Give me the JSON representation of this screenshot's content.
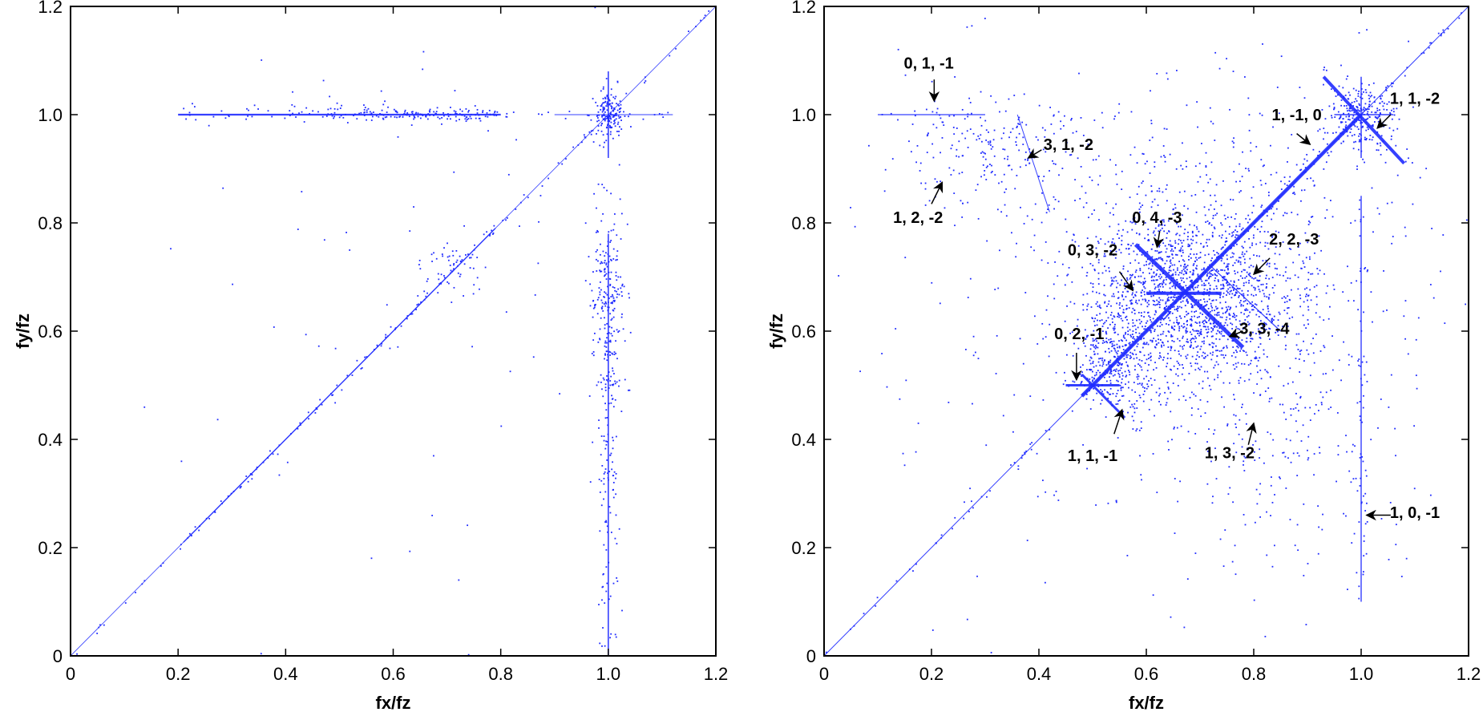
{
  "chart_data": [
    {
      "type": "scatter",
      "xlabel": "fx/fz",
      "ylabel": "fy/fz",
      "xlim": [
        0,
        1.2
      ],
      "ylim": [
        0,
        1.2
      ],
      "xticks": [
        "0",
        "0.2",
        "0.4",
        "0.6",
        "0.8",
        "1.0",
        "1.2"
      ],
      "yticks": [
        "0",
        "0.2",
        "0.4",
        "0.6",
        "0.8",
        "1.0",
        "1.2"
      ],
      "color": "#1f2bff",
      "lines": [
        {
          "x1": 0.0,
          "y1": 0.0,
          "x2": 1.2,
          "y2": 1.2,
          "width": 0.8
        },
        {
          "x1": 0.21,
          "y1": 0.21,
          "x2": 0.79,
          "y2": 0.79,
          "width": 1.4
        },
        {
          "x1": 0.2,
          "y1": 1.0,
          "x2": 0.8,
          "y2": 1.0,
          "width": 2.2
        },
        {
          "x1": 0.9,
          "y1": 1.0,
          "x2": 1.12,
          "y2": 1.0,
          "width": 1.0
        },
        {
          "x1": 1.0,
          "y1": 0.0,
          "x2": 1.0,
          "y2": 0.78,
          "width": 1.6
        },
        {
          "x1": 1.0,
          "y1": 0.92,
          "x2": 1.0,
          "y2": 1.08,
          "width": 1.6
        }
      ],
      "clusters": [
        {
          "x": 1.0,
          "y": 1.0,
          "sx": 0.015,
          "sy": 0.02,
          "n": 160
        },
        {
          "x": 1.0,
          "y": 0.65,
          "sx": 0.02,
          "sy": 0.08,
          "n": 180
        },
        {
          "x": 1.0,
          "y": 0.4,
          "sx": 0.012,
          "sy": 0.2,
          "n": 130
        },
        {
          "x": 0.65,
          "y": 1.0,
          "sx": 0.1,
          "sy": 0.006,
          "n": 140
        },
        {
          "x": 0.7,
          "y": 0.72,
          "sx": 0.03,
          "sy": 0.03,
          "n": 50
        },
        {
          "x": 0.6,
          "y": 0.6,
          "sx": 0.25,
          "sy": 0.3,
          "n": 70
        }
      ],
      "annotations": []
    },
    {
      "type": "scatter",
      "xlabel": "fx/fz",
      "ylabel": "fy/fz",
      "xlim": [
        0,
        1.2
      ],
      "ylim": [
        0,
        1.2
      ],
      "xticks": [
        "0",
        "0.2",
        "0.4",
        "0.6",
        "0.8",
        "1.0",
        "1.2"
      ],
      "yticks": [
        "0",
        "0.2",
        "0.4",
        "0.6",
        "0.8",
        "1.0",
        "1.2"
      ],
      "color": "#1f2bff",
      "lines": [
        {
          "x1": 0.0,
          "y1": 0.0,
          "x2": 1.2,
          "y2": 1.2,
          "width": 1.0
        },
        {
          "x1": 0.48,
          "y1": 0.48,
          "x2": 1.0,
          "y2": 1.0,
          "width": 4.5
        },
        {
          "x1": 0.93,
          "y1": 1.07,
          "x2": 1.08,
          "y2": 0.91,
          "width": 4.0
        },
        {
          "x1": 0.95,
          "y1": 1.0,
          "x2": 1.06,
          "y2": 1.0,
          "width": 1.5
        },
        {
          "x1": 1.0,
          "y1": 0.92,
          "x2": 1.0,
          "y2": 1.07,
          "width": 1.5
        },
        {
          "x1": 1.0,
          "y1": 0.1,
          "x2": 1.0,
          "y2": 0.85,
          "width": 1.4
        },
        {
          "x1": 0.58,
          "y1": 0.76,
          "x2": 0.78,
          "y2": 0.57,
          "width": 5.0
        },
        {
          "x1": 0.6,
          "y1": 0.67,
          "x2": 0.74,
          "y2": 0.67,
          "width": 4.0
        },
        {
          "x1": 0.45,
          "y1": 0.5,
          "x2": 0.55,
          "y2": 0.5,
          "width": 3.0
        },
        {
          "x1": 0.48,
          "y1": 0.52,
          "x2": 0.56,
          "y2": 0.44,
          "width": 3.0
        },
        {
          "x1": 0.36,
          "y1": 1.0,
          "x2": 0.42,
          "y2": 0.82,
          "width": 1.0
        },
        {
          "x1": 0.1,
          "y1": 1.0,
          "x2": 0.3,
          "y2": 1.0,
          "width": 1.2
        },
        {
          "x1": 0.72,
          "y1": 0.72,
          "x2": 0.85,
          "y2": 0.6,
          "width": 1.2
        }
      ],
      "clusters": [
        {
          "x": 0.67,
          "y": 0.66,
          "sx": 0.09,
          "sy": 0.08,
          "n": 1300
        },
        {
          "x": 0.72,
          "y": 0.72,
          "sx": 0.16,
          "sy": 0.14,
          "n": 700
        },
        {
          "x": 0.55,
          "y": 0.55,
          "sx": 0.04,
          "sy": 0.04,
          "n": 250
        },
        {
          "x": 1.0,
          "y": 1.0,
          "sx": 0.03,
          "sy": 0.03,
          "n": 220
        },
        {
          "x": 0.3,
          "y": 0.93,
          "sx": 0.1,
          "sy": 0.05,
          "n": 200
        },
        {
          "x": 0.85,
          "y": 0.45,
          "sx": 0.12,
          "sy": 0.15,
          "n": 250
        },
        {
          "x": 0.6,
          "y": 0.6,
          "sx": 0.3,
          "sy": 0.3,
          "n": 250
        }
      ],
      "annotations": [
        {
          "text": "0, 1, -1",
          "tx": 0.195,
          "ty": 1.085,
          "ax1": 0.205,
          "ay1": 1.065,
          "ax2": 0.205,
          "ay2": 1.025
        },
        {
          "text": "1, -1, 0",
          "tx": 0.88,
          "ty": 0.99,
          "ax1": 0.88,
          "ay1": 0.965,
          "ax2": 0.905,
          "ay2": 0.945
        },
        {
          "text": "1, 1, -2",
          "tx": 1.1,
          "ty": 1.02,
          "ax1": 1.055,
          "ay1": 1.0,
          "ax2": 1.03,
          "ay2": 0.975
        },
        {
          "text": "3, 1, -2",
          "tx": 0.455,
          "ty": 0.935,
          "ax1": 0.405,
          "ay1": 0.935,
          "ax2": 0.38,
          "ay2": 0.92
        },
        {
          "text": "1, 2, -2",
          "tx": 0.175,
          "ty": 0.8,
          "ax1": 0.2,
          "ay1": 0.835,
          "ax2": 0.22,
          "ay2": 0.875
        },
        {
          "text": "0, 4, -3",
          "tx": 0.62,
          "ty": 0.8,
          "ax1": 0.625,
          "ay1": 0.785,
          "ax2": 0.62,
          "ay2": 0.755
        },
        {
          "text": "0, 3, -2",
          "tx": 0.5,
          "ty": 0.74,
          "ax1": 0.55,
          "ay1": 0.71,
          "ax2": 0.575,
          "ay2": 0.675
        },
        {
          "text": "2, 2, -3",
          "tx": 0.875,
          "ty": 0.76,
          "ax1": 0.83,
          "ay1": 0.735,
          "ax2": 0.8,
          "ay2": 0.705
        },
        {
          "text": "3, 3, -4",
          "tx": 0.82,
          "ty": 0.595,
          "ax1": 0.78,
          "ay1": 0.6,
          "ax2": 0.755,
          "ay2": 0.59
        },
        {
          "text": "0, 2, -1",
          "tx": 0.475,
          "ty": 0.585,
          "ax1": 0.47,
          "ay1": 0.56,
          "ax2": 0.47,
          "ay2": 0.51
        },
        {
          "text": "1, 1, -1",
          "tx": 0.5,
          "ty": 0.36,
          "ax1": 0.54,
          "ay1": 0.41,
          "ax2": 0.555,
          "ay2": 0.455
        },
        {
          "text": "1, 3, -2",
          "tx": 0.755,
          "ty": 0.365,
          "ax1": 0.79,
          "ay1": 0.39,
          "ax2": 0.8,
          "ay2": 0.43
        },
        {
          "text": "1, 0, -1",
          "tx": 1.1,
          "ty": 0.255,
          "ax1": 1.055,
          "ay1": 0.26,
          "ax2": 1.01,
          "ay2": 0.26
        }
      ]
    }
  ]
}
